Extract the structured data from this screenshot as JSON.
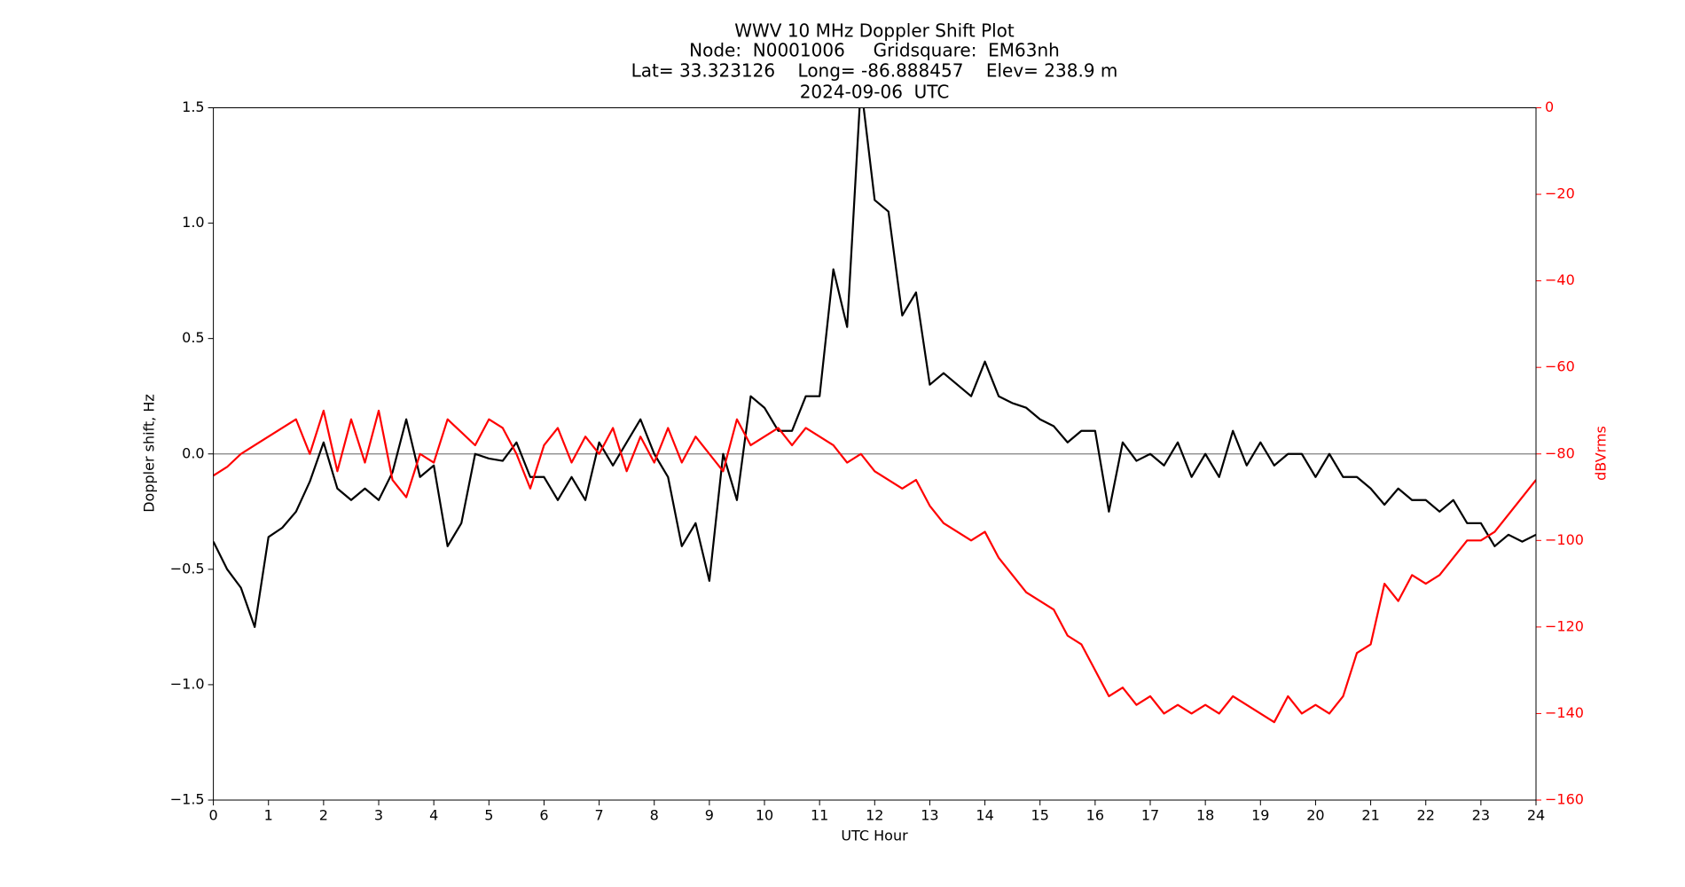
{
  "chart_data": {
    "type": "line",
    "title_lines": [
      "WWV 10 MHz Doppler Shift Plot",
      "Node:  N0001006     Gridsquare:  EM63nh",
      "Lat= 33.323126    Long= -86.888457    Elev= 238.9 m",
      "2024-09-06  UTC"
    ],
    "xlabel": "UTC Hour",
    "ylabel": "Doppler shift, Hz",
    "y2label": "dBVrms",
    "xlim": [
      0,
      24
    ],
    "xticks": [
      0,
      1,
      2,
      3,
      4,
      5,
      6,
      7,
      8,
      9,
      10,
      11,
      12,
      13,
      14,
      15,
      16,
      17,
      18,
      19,
      20,
      21,
      22,
      23,
      24
    ],
    "ylim": [
      -1.5,
      1.5
    ],
    "yticks": [
      {
        "value": -1.5,
        "label": "−1.5"
      },
      {
        "value": -1.0,
        "label": "−1.0"
      },
      {
        "value": -0.5,
        "label": "−0.5"
      },
      {
        "value": 0,
        "label": "0.0"
      },
      {
        "value": 0.5,
        "label": "0.5"
      },
      {
        "value": 1.0,
        "label": "1.0"
      },
      {
        "value": 1.5,
        "label": "1.5"
      }
    ],
    "y2lim": [
      -160,
      0
    ],
    "y2ticks": [
      {
        "value": -160,
        "label": "−160"
      },
      {
        "value": -140,
        "label": "−140"
      },
      {
        "value": -120,
        "label": "−120"
      },
      {
        "value": -100,
        "label": "−100"
      },
      {
        "value": -80,
        "label": "−80"
      },
      {
        "value": -60,
        "label": "−60"
      },
      {
        "value": -40,
        "label": "−40"
      },
      {
        "value": -20,
        "label": "−20"
      },
      0
    ],
    "y2color": "#ff0000",
    "hline": {
      "value": 0,
      "color": "#808080"
    },
    "x": [
      0,
      0.25,
      0.5,
      0.75,
      1,
      1.25,
      1.5,
      1.75,
      2,
      2.25,
      2.5,
      2.75,
      3,
      3.25,
      3.5,
      3.75,
      4,
      4.25,
      4.5,
      4.75,
      5,
      5.25,
      5.5,
      5.75,
      6,
      6.25,
      6.5,
      6.75,
      7,
      7.25,
      7.5,
      7.75,
      8,
      8.25,
      8.5,
      8.75,
      9,
      9.25,
      9.5,
      9.75,
      10,
      10.25,
      10.5,
      10.75,
      11,
      11.25,
      11.5,
      11.75,
      12,
      12.25,
      12.5,
      12.75,
      13,
      13.25,
      13.5,
      13.75,
      14,
      14.25,
      14.5,
      14.75,
      15,
      15.25,
      15.5,
      15.75,
      16,
      16.25,
      16.5,
      16.75,
      17,
      17.25,
      17.5,
      17.75,
      18,
      18.25,
      18.5,
      18.75,
      19,
      19.25,
      19.5,
      19.75,
      20,
      20.25,
      20.5,
      20.75,
      21,
      21.25,
      21.5,
      21.75,
      22,
      22.25,
      22.5,
      22.75,
      23,
      23.25,
      23.5,
      23.75,
      24
    ],
    "series": [
      {
        "name": "Doppler shift",
        "color": "#000000",
        "axis": "y",
        "values": [
          -0.38,
          -0.5,
          -0.58,
          -0.75,
          -0.36,
          -0.32,
          -0.25,
          -0.12,
          0.05,
          -0.15,
          -0.2,
          -0.15,
          -0.2,
          -0.08,
          0.15,
          -0.1,
          -0.05,
          -0.4,
          -0.3,
          0,
          -0.02,
          -0.03,
          0.05,
          -0.1,
          -0.1,
          -0.2,
          -0.1,
          -0.2,
          0.05,
          -0.05,
          0.05,
          0.15,
          0,
          -0.1,
          -0.4,
          -0.3,
          -0.55,
          0,
          -0.2,
          0.25,
          0.2,
          0.1,
          0.1,
          0.25,
          0.25,
          0.8,
          0.55,
          1.6,
          1.1,
          1.05,
          0.6,
          0.7,
          0.3,
          0.35,
          0.3,
          0.25,
          0.4,
          0.25,
          0.22,
          0.2,
          0.15,
          0.12,
          0.05,
          0.1,
          0.1,
          -0.25,
          0.05,
          -0.03,
          0,
          -0.05,
          0.05,
          -0.1,
          0,
          -0.1,
          0.1,
          -0.05,
          0.05,
          -0.05,
          0,
          0,
          -0.1,
          0,
          -0.1,
          -0.1,
          -0.15,
          -0.22,
          -0.15,
          -0.2,
          -0.2,
          -0.25,
          -0.2,
          -0.3,
          -0.3,
          -0.4,
          -0.35,
          -0.38,
          -0.35
        ]
      },
      {
        "name": "dBVrms",
        "color": "#ff0000",
        "axis": "y2",
        "values": [
          -85,
          -83,
          -80,
          -78,
          -76,
          -74,
          -72,
          -80,
          -70,
          -84,
          -72,
          -82,
          -70,
          -86,
          -90,
          -80,
          -82,
          -72,
          -75,
          -78,
          -72,
          -74,
          -80,
          -88,
          -78,
          -74,
          -82,
          -76,
          -80,
          -74,
          -84,
          -76,
          -82,
          -74,
          -82,
          -76,
          -80,
          -84,
          -72,
          -78,
          -76,
          -74,
          -78,
          -74,
          -76,
          -78,
          -82,
          -80,
          -84,
          -86,
          -88,
          -86,
          -92,
          -96,
          -98,
          -100,
          -98,
          -104,
          -108,
          -112,
          -114,
          -116,
          -122,
          -124,
          -130,
          -136,
          -134,
          -138,
          -136,
          -140,
          -138,
          -140,
          -138,
          -140,
          -136,
          -138,
          -140,
          -142,
          -136,
          -140,
          -138,
          -140,
          -136,
          -126,
          -124,
          -110,
          -114,
          -108,
          -110,
          -108,
          -104,
          -100,
          -100,
          -98,
          -94,
          -90,
          -86
        ]
      }
    ]
  }
}
